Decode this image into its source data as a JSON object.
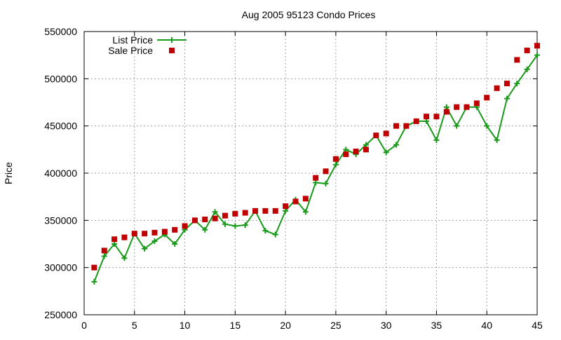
{
  "chart_data": {
    "type": "line",
    "title": "Aug 2005 95123 Condo Prices",
    "xlabel": "",
    "ylabel": "Price",
    "xlim": [
      0,
      45
    ],
    "ylim": [
      250000,
      550000
    ],
    "xticks": [
      0,
      5,
      10,
      15,
      20,
      25,
      30,
      35,
      40,
      45
    ],
    "yticks": [
      250000,
      300000,
      350000,
      400000,
      450000,
      500000,
      550000
    ],
    "grid": true,
    "legend_position": "top-left",
    "x": [
      1,
      2,
      3,
      4,
      5,
      6,
      7,
      8,
      9,
      10,
      11,
      12,
      13,
      14,
      15,
      16,
      17,
      18,
      19,
      20,
      21,
      22,
      23,
      24,
      25,
      26,
      27,
      28,
      29,
      30,
      31,
      32,
      33,
      34,
      35,
      36,
      37,
      38,
      39,
      40,
      41,
      42,
      43,
      44,
      45
    ],
    "series": [
      {
        "name": "List Price",
        "style": "linespoints",
        "color": "#1a9a1a",
        "marker": "plus",
        "values": [
          285000,
          312000,
          325000,
          310000,
          336000,
          320000,
          328000,
          335000,
          325000,
          340000,
          350000,
          340000,
          359000,
          346000,
          344000,
          345000,
          360000,
          339000,
          335000,
          360000,
          372000,
          359000,
          390000,
          389000,
          409000,
          425000,
          420000,
          430000,
          440000,
          422000,
          430000,
          450000,
          455000,
          455000,
          435000,
          470000,
          450000,
          470000,
          470000,
          450000,
          435000,
          479000,
          495000,
          510000,
          525000
        ]
      },
      {
        "name": "Sale Price",
        "style": "points",
        "color": "#c00000",
        "marker": "square",
        "values": [
          300000,
          318000,
          330000,
          332000,
          336000,
          336000,
          337000,
          338000,
          340000,
          344000,
          350000,
          351000,
          352000,
          355000,
          357000,
          358000,
          360000,
          360000,
          360000,
          365000,
          370000,
          373000,
          395000,
          402000,
          415000,
          420000,
          423000,
          425000,
          440000,
          442000,
          450000,
          450000,
          455000,
          460000,
          460000,
          465000,
          470000,
          470000,
          474000,
          480000,
          490000,
          495000,
          520000,
          530000,
          535000
        ]
      }
    ]
  }
}
